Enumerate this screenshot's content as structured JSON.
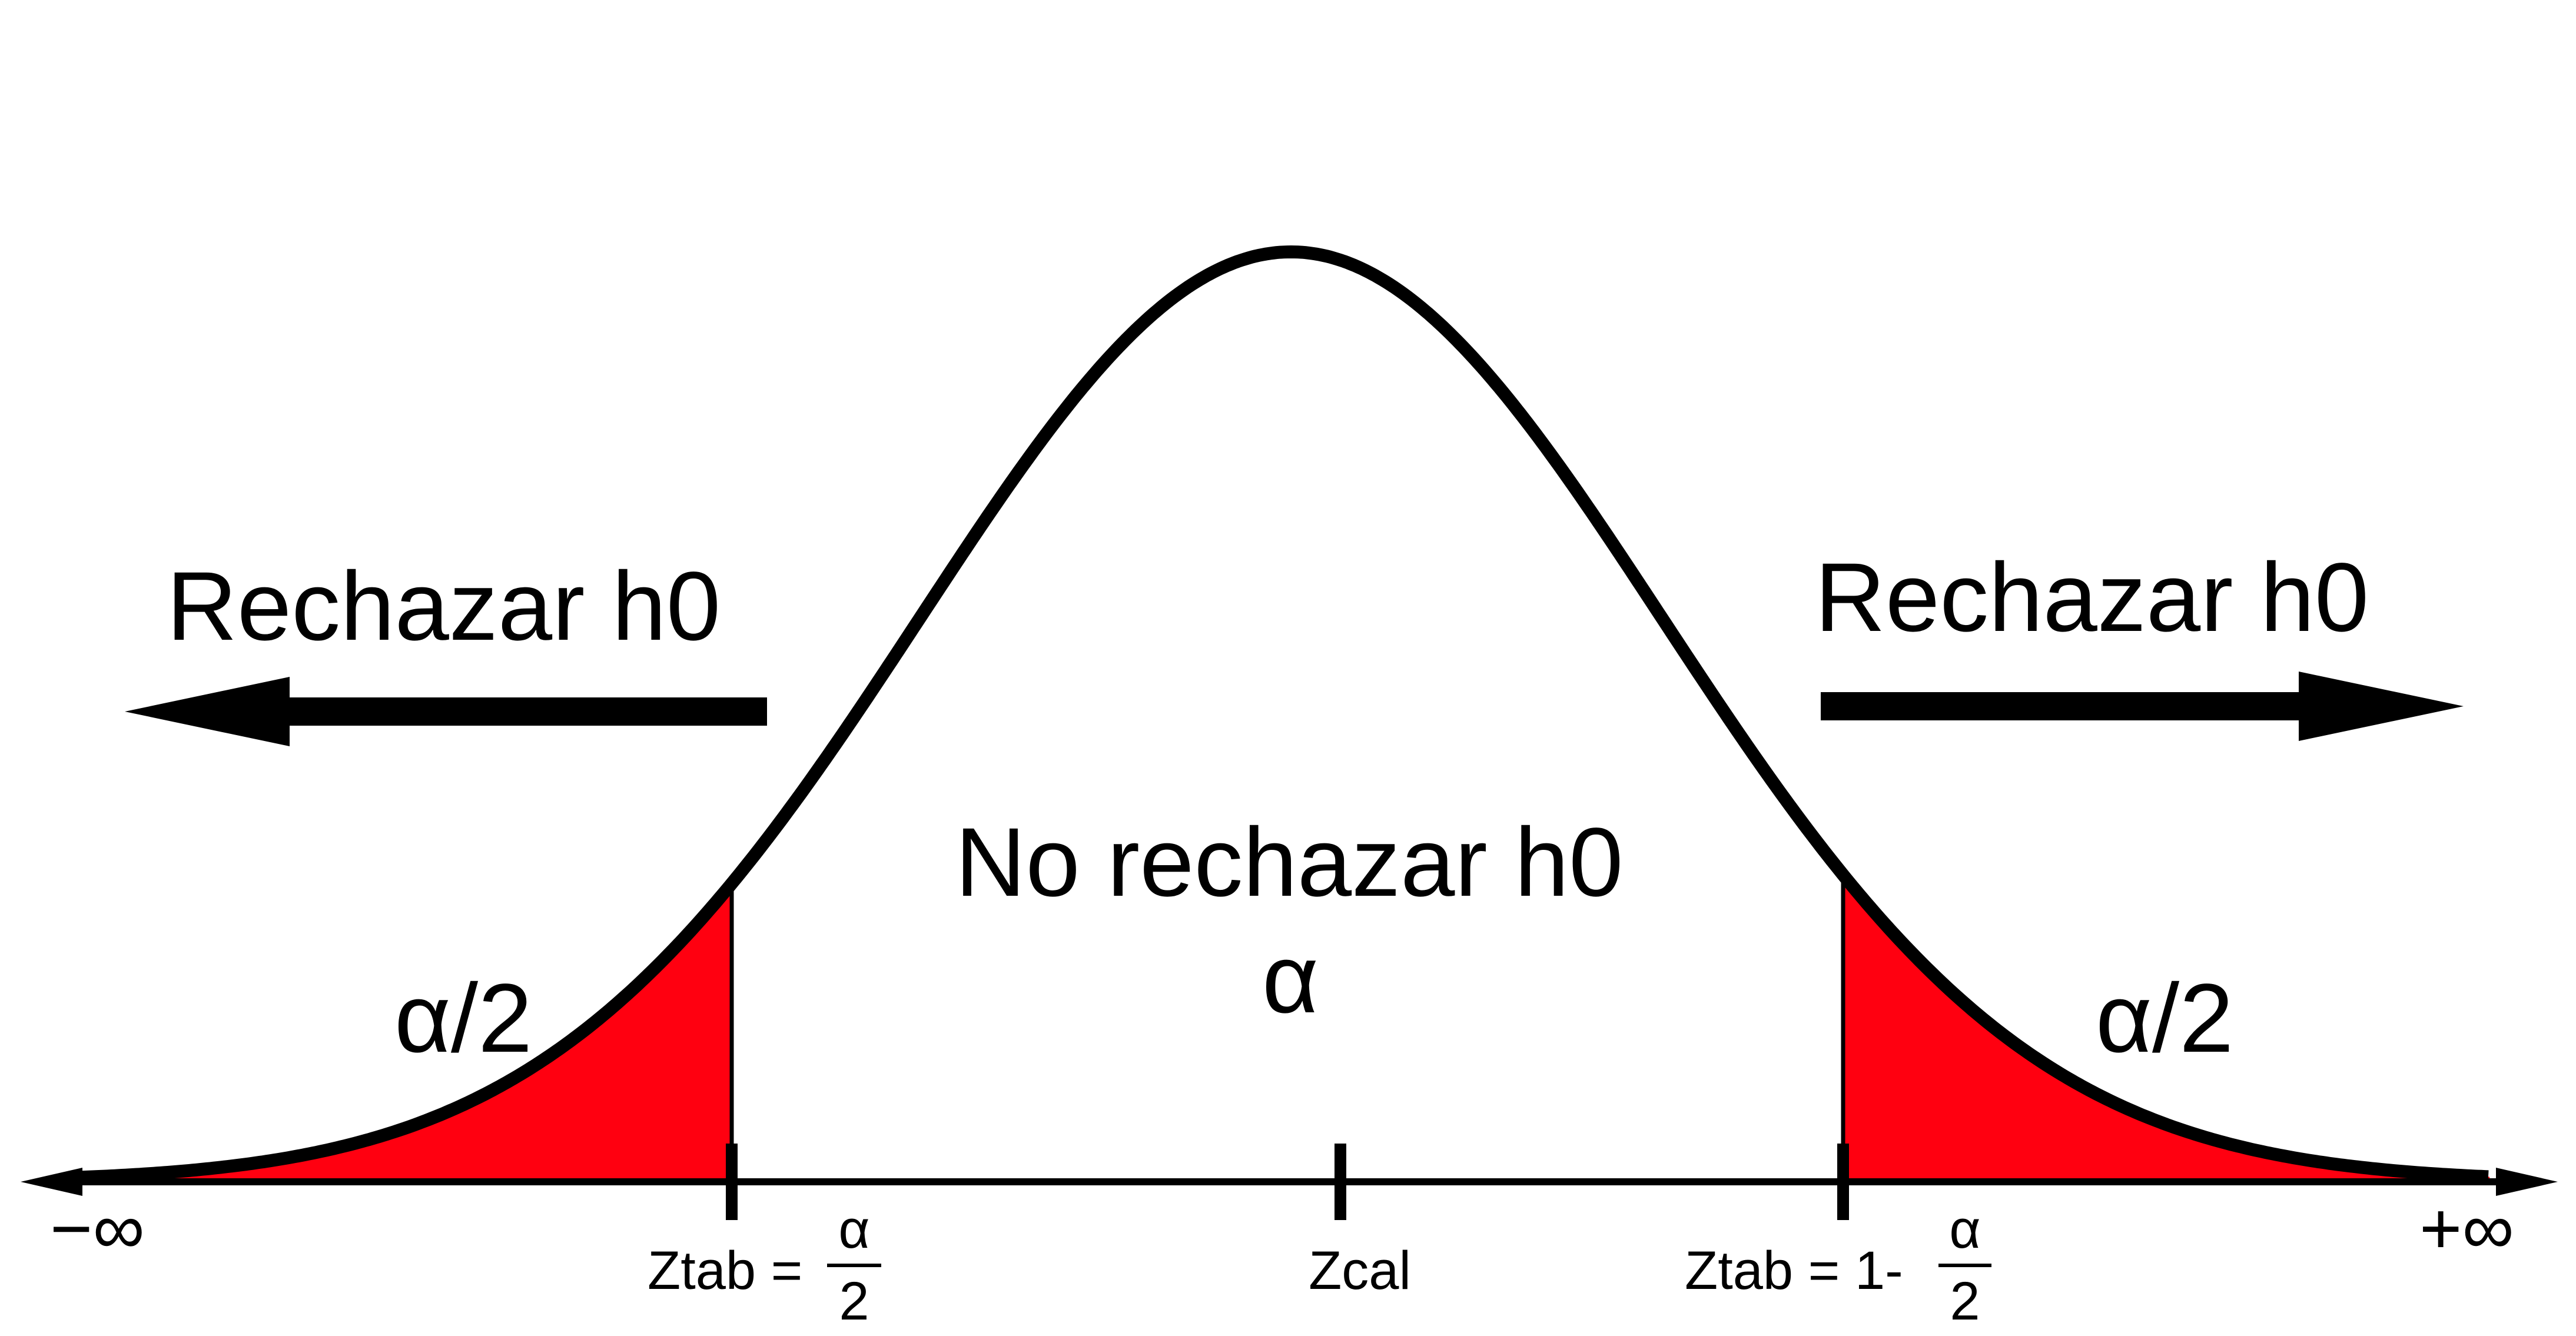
{
  "labels": {
    "reject_left": "Rechazar h0",
    "reject_right": "Rechazar h0",
    "no_reject": "No rechazar h0",
    "alpha_center": "α",
    "alpha_half_left": "α/2",
    "alpha_half_right": "α/2",
    "neg_inf": "−∞",
    "pos_inf": "+∞",
    "ztab_left_prefix": "Ztab =",
    "ztab_left_num": "α",
    "ztab_left_den": "2",
    "zcal": "Zcal",
    "ztab_right_prefix": "Ztab = 1-",
    "ztab_right_num": "α",
    "ztab_right_den": "2"
  },
  "colors": {
    "tail_fill": "#ff0010",
    "curve": "#000000",
    "axis": "#000000"
  }
}
